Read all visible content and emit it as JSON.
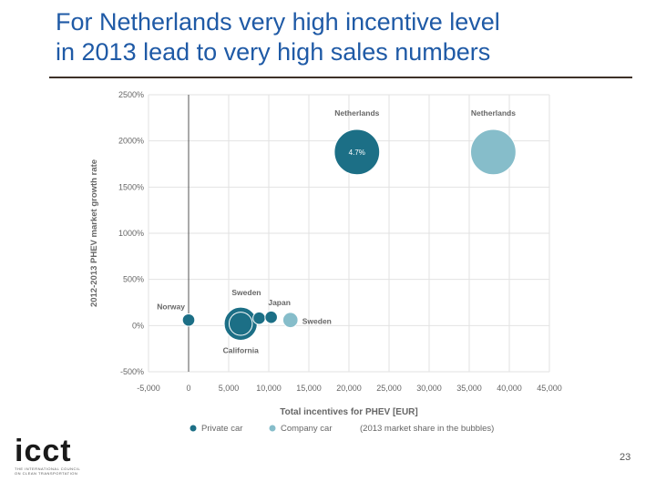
{
  "slide": {
    "title_line1": "For Netherlands very high incentive level",
    "title_line2": "in 2013 lead to very high sales numbers",
    "page_number": "23"
  },
  "logo": {
    "word": "icct",
    "tagline1": "THE INTERNATIONAL COUNCIL",
    "tagline2": "ON CLEAN TRANSPORTATION"
  },
  "colors": {
    "private": "#1c6f86",
    "company": "#86bdca",
    "axis_text": "#666666",
    "grid": "#e2e2e2"
  },
  "chart_data": {
    "type": "scatter",
    "xlabel": "Total incentives for PHEV [EUR]",
    "ylabel": "2012-2013 PHEV market growth rate",
    "xlim": [
      -5000,
      45000
    ],
    "ylim": [
      -500,
      2500
    ],
    "x_ticks": [
      -5000,
      0,
      5000,
      10000,
      15000,
      20000,
      25000,
      30000,
      35000,
      40000,
      45000
    ],
    "x_tick_labels": [
      "-5,000",
      "0",
      "5,000",
      "10,000",
      "15,000",
      "20,000",
      "25,000",
      "30,000",
      "35,000",
      "40,000",
      "45,000"
    ],
    "y_ticks": [
      -500,
      0,
      500,
      1000,
      1500,
      2000,
      2500
    ],
    "y_tick_labels": [
      "-500%",
      "0%",
      "500%",
      "1000%",
      "1500%",
      "2000%",
      "2500%"
    ],
    "grid": true,
    "legend": {
      "placement": "bottom",
      "items": [
        "Private car",
        "Company car"
      ],
      "note": "(2013 market share in the bubbles)"
    },
    "series": [
      {
        "name": "Private car",
        "color": "#1c6f86",
        "points": [
          {
            "label": "Netherlands",
            "x": 21000,
            "y": 1880,
            "share": 4.7,
            "bubble_label": "4.7%"
          },
          {
            "label": "Norway",
            "x": 0,
            "y": 60,
            "share": 0.2
          },
          {
            "label": "US",
            "x": 6500,
            "y": 20,
            "share": 2.5,
            "bubble_label": "US"
          },
          {
            "label": "California",
            "x": 6500,
            "y": 20,
            "share": 0.7
          },
          {
            "label": "Sweden",
            "x": 8800,
            "y": 80,
            "share": 0.2
          },
          {
            "label": "Japan",
            "x": 10300,
            "y": 90,
            "share": 0.2
          }
        ]
      },
      {
        "name": "Company car",
        "color": "#86bdca",
        "points": [
          {
            "label": "Netherlands",
            "x": 38000,
            "y": 1880,
            "share": 4.7
          },
          {
            "label": "Sweden",
            "x": 12700,
            "y": 60,
            "share": 0.3
          }
        ]
      }
    ]
  }
}
